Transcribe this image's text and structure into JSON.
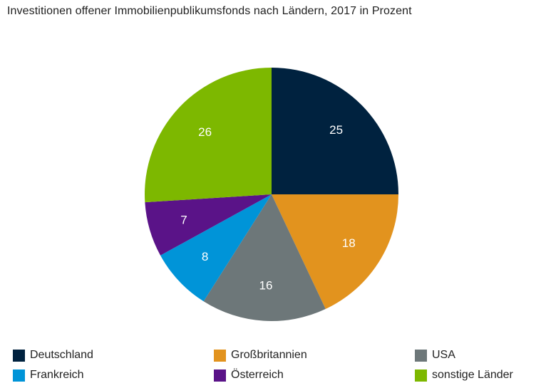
{
  "chart_data": {
    "type": "pie",
    "title": "Investitionen offener Immobilienpublikumsfonds nach Ländern, 2017 in Prozent",
    "legend_position": "bottom",
    "slices": [
      {
        "label": "Deutschland",
        "value": 25,
        "display": "25",
        "color": "#00223f"
      },
      {
        "label": "Großbritannien",
        "value": 18,
        "display": "18",
        "color": "#e2931e"
      },
      {
        "label": "USA",
        "value": 16,
        "display": "16",
        "color": "#6d7779"
      },
      {
        "label": "Frankreich",
        "value": 8,
        "display": "8",
        "color": "#0094d8"
      },
      {
        "label": "Österreich",
        "value": 7,
        "display": "7",
        "color": "#5a1388"
      },
      {
        "label": "sonstige Länder",
        "value": 26,
        "display": "26",
        "color": "#7db800"
      }
    ],
    "start_angle": "12 o'clock",
    "direction": "clockwise"
  }
}
